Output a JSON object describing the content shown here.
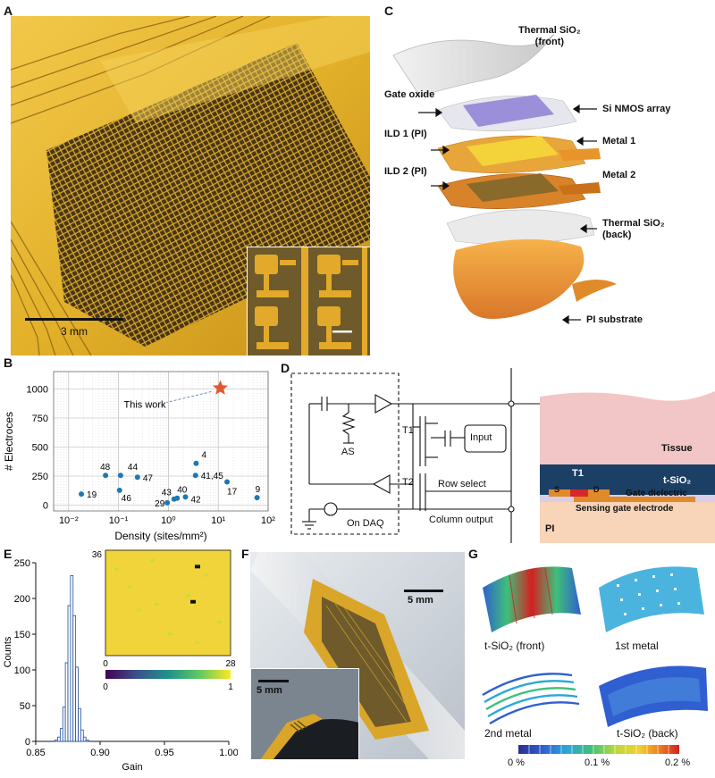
{
  "panels": {
    "A": {
      "label": "A",
      "scalebar": "3 mm"
    },
    "B": {
      "label": "B",
      "this_work_label": "This work",
      "chart_data": {
        "type": "scatter",
        "xlabel": "Density (sites/mm²)",
        "ylabel": "# Electroces",
        "xscale": "log",
        "xlim": [
          0.005,
          100
        ],
        "ylim": [
          -50,
          1150
        ],
        "xticks": [
          "10⁻²",
          "10⁻¹",
          "10⁰",
          "10¹",
          "10²"
        ],
        "yticks": [
          0,
          250,
          500,
          750,
          1000
        ],
        "grid": true,
        "points": [
          {
            "label": "19",
            "x": 0.018,
            "y": 95
          },
          {
            "label": "48",
            "x": 0.055,
            "y": 256
          },
          {
            "label": "44",
            "x": 0.11,
            "y": 256
          },
          {
            "label": "46",
            "x": 0.105,
            "y": 128
          },
          {
            "label": "47",
            "x": 0.24,
            "y": 240
          },
          {
            "label": "29",
            "x": 0.95,
            "y": 20
          },
          {
            "label": "43",
            "x": 1.3,
            "y": 52
          },
          {
            "label": "40",
            "x": 1.5,
            "y": 60
          },
          {
            "label": "42",
            "x": 2.2,
            "y": 70
          },
          {
            "label": "41,45",
            "x": 3.5,
            "y": 256
          },
          {
            "label": "4",
            "x": 3.6,
            "y": 360
          },
          {
            "label": "17",
            "x": 15,
            "y": 200
          },
          {
            "label": "9",
            "x": 60,
            "y": 64
          }
        ],
        "highlight": {
          "label": "This work",
          "x": 11,
          "y": 1008,
          "marker": "star",
          "color": "#e4572e"
        }
      }
    },
    "C": {
      "label": "C",
      "layers": {
        "thermal_front": "Thermal SiO₂\n(front)",
        "gate_oxide": "Gate oxide",
        "si_nmos": "Si NMOS array",
        "ild1": "ILD 1 (PI)",
        "metal1": "Metal 1",
        "ild2": "ILD 2 (PI)",
        "metal2": "Metal 2",
        "thermal_back": "Thermal SiO₂\n(back)",
        "pi_substrate": "PI substrate"
      }
    },
    "D": {
      "label": "D",
      "circuit": {
        "as": "AS",
        "t1": "T1",
        "t2": "T2",
        "input": "Input",
        "row_select": "Row select",
        "column_output": "Column output",
        "on_daq": "On DAQ"
      },
      "cross_section": {
        "tissue": "Tissue",
        "t1": "T1",
        "t_sio2": "t-SiO₂",
        "s": "S",
        "d": "D",
        "gate_dielectric": "Gate dielectric",
        "sensing_gate": "Sensing gate electrode",
        "pi": "PI"
      }
    },
    "E": {
      "label": "E",
      "chart_data": {
        "type": "histogram",
        "xlabel": "Gain",
        "ylabel": "Counts",
        "xlim": [
          0.85,
          1.0
        ],
        "ylim": [
          0,
          250
        ],
        "xticks": [
          "0.85",
          "0.90",
          "0.95",
          "1.00"
        ],
        "yticks": [
          0,
          50,
          100,
          150,
          200,
          250
        ],
        "bins": [
          {
            "x": 0.866,
            "count": 2
          },
          {
            "x": 0.868,
            "count": 6
          },
          {
            "x": 0.87,
            "count": 18
          },
          {
            "x": 0.872,
            "count": 48
          },
          {
            "x": 0.874,
            "count": 110
          },
          {
            "x": 0.876,
            "count": 190
          },
          {
            "x": 0.878,
            "count": 232
          },
          {
            "x": 0.88,
            "count": 176
          },
          {
            "x": 0.882,
            "count": 104
          },
          {
            "x": 0.884,
            "count": 46
          },
          {
            "x": 0.886,
            "count": 16
          },
          {
            "x": 0.888,
            "count": 6
          },
          {
            "x": 0.89,
            "count": 2
          }
        ],
        "inset": {
          "type": "heatmap",
          "rows": 36,
          "cols": 28,
          "ytick_top": "36",
          "xtick_left": "0",
          "xtick_right": "28",
          "colorbar_min": "0",
          "colorbar_max": "1"
        }
      }
    },
    "F": {
      "label": "F",
      "scalebar_main": "5 mm",
      "scalebar_inset": "5 mm"
    },
    "G": {
      "label": "G",
      "views": {
        "front": "t-SiO₂ (front)",
        "metal1": "1st metal",
        "metal2": "2nd metal",
        "back": "t-SiO₂ (back)"
      },
      "colorbar_ticks": [
        "0 %",
        "0.1 %",
        "0.2 %"
      ]
    }
  },
  "colors": {
    "gold": "#d9a420",
    "orange": "#e08a2a",
    "scatter": "#1f77b4",
    "star": "#e4572e",
    "tissue": "#f2c6c6",
    "sio2": "#1c3f66",
    "pi": "#f8d4b8"
  }
}
